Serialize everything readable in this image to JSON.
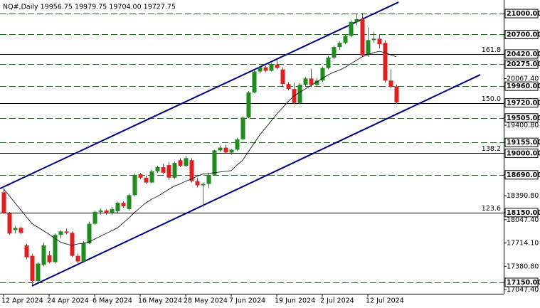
{
  "chart_data": {
    "type": "candlestick",
    "title": "NQ#,Daily  19956.75 19979.75 19704.00 19727.75",
    "categories": [
      "12 Apr 2024",
      null,
      null,
      null,
      null,
      null,
      null,
      null,
      "24 Apr 2024",
      null,
      null,
      null,
      null,
      null,
      null,
      null,
      "6 May 2024",
      null,
      null,
      null,
      null,
      null,
      null,
      null,
      "16 May 2024",
      null,
      null,
      null,
      null,
      null,
      null,
      null,
      "28 May 2024",
      null,
      null,
      null,
      null,
      null,
      null,
      null,
      "7 Jun 2024",
      null,
      null,
      null,
      null,
      null,
      null,
      null,
      "19 Jun 2024",
      null,
      null,
      null,
      null,
      null,
      null,
      null,
      "2 Jul 2024",
      null,
      null,
      null,
      null,
      null,
      null,
      null,
      "12 Jul 2024",
      null,
      null,
      null,
      null,
      null
    ],
    "open": [
      18440,
      18140,
      17900,
      17930,
      17680,
      17530,
      17170,
      17400,
      17540,
      17440,
      17830,
      17880,
      17860,
      17530,
      17450,
      17710,
      17990,
      18160,
      18180,
      18140,
      18170,
      18290,
      18200,
      18400,
      18700,
      18650,
      18580,
      18740,
      18800,
      18830,
      18650,
      18900,
      18820,
      18900,
      18600,
      18540,
      18560,
      18690,
      19040,
      19080,
      19010,
      19050,
      19200,
      19510,
      19870,
      20170,
      20230,
      20180,
      20270,
      20200,
      19990,
      19920,
      19720,
      19980,
      20070,
      19980,
      20040,
      20220,
      20370,
      20520,
      20580,
      20680,
      20880,
      20920,
      20420,
      20620,
      20640,
      20580,
      20040,
      19956.75
    ],
    "high": [
      18500,
      18160,
      17960,
      17950,
      17700,
      17560,
      17440,
      17720,
      17600,
      17850,
      17900,
      17920,
      17880,
      17560,
      17740,
      18020,
      18180,
      18210,
      18200,
      18230,
      18300,
      18310,
      18420,
      18710,
      18720,
      18680,
      18760,
      18820,
      18850,
      18870,
      18880,
      18930,
      18960,
      18930,
      18650,
      18580,
      18720,
      19050,
      19110,
      19120,
      19060,
      19220,
      19530,
      19890,
      20190,
      20240,
      20250,
      20290,
      20330,
      20230,
      20020,
      20010,
      20000,
      20090,
      20210,
      20080,
      20240,
      20390,
      20540,
      20600,
      20700,
      20900,
      20990,
      21010,
      20800,
      20740,
      20700,
      20620,
      20200,
      19979.75
    ],
    "low": [
      18130,
      17830,
      17850,
      17840,
      17480,
      17110,
      17150,
      17380,
      17420,
      17420,
      17780,
      17840,
      17510,
      17420,
      17430,
      17700,
      17970,
      18120,
      18120,
      18120,
      18150,
      18220,
      18180,
      18380,
      18630,
      18560,
      18570,
      18720,
      18700,
      18620,
      18630,
      18800,
      18800,
      18580,
      18510,
      18230,
      18500,
      18680,
      19020,
      19000,
      18980,
      19030,
      19190,
      19500,
      19860,
      20140,
      20160,
      20170,
      20200,
      19960,
      19900,
      19700,
      19700,
      19960,
      19960,
      19960,
      20020,
      20200,
      20350,
      20480,
      20560,
      20660,
      20830,
      20380,
      20380,
      20580,
      20500,
      20010,
      19930,
      19704
    ],
    "close": [
      18140,
      17850,
      17930,
      17860,
      17510,
      17170,
      17420,
      17680,
      17440,
      17830,
      17880,
      17860,
      17530,
      17450,
      17710,
      17990,
      18160,
      18180,
      18140,
      18200,
      18290,
      18240,
      18400,
      18690,
      18650,
      18580,
      18740,
      18800,
      18720,
      18650,
      18860,
      18820,
      18930,
      18600,
      18540,
      18560,
      18690,
      19040,
      19080,
      19010,
      19050,
      19200,
      19510,
      19870,
      20170,
      20230,
      20180,
      20270,
      20220,
      19990,
      19920,
      19720,
      19980,
      20070,
      19980,
      20040,
      20220,
      20370,
      20520,
      20580,
      20680,
      20880,
      20920,
      20400,
      20620,
      20640,
      20560,
      20040,
      19950,
      19727.75
    ],
    "up_color": "#1e8c1e",
    "down_color": "#e02020",
    "moving_average": {
      "color": "#000000",
      "values": [
        18490,
        18390,
        18290,
        18190,
        18090,
        17990,
        17940,
        17890,
        17840,
        17780,
        17730,
        17700,
        17680,
        17700,
        17710,
        17730,
        17770,
        17810,
        17850,
        17890,
        17930,
        18000,
        18070,
        18150,
        18220,
        18290,
        18340,
        18380,
        18430,
        18480,
        18530,
        18560,
        18600,
        18630,
        18670,
        18700,
        18710,
        18720,
        18730,
        18740,
        18750,
        18830,
        18900,
        19020,
        19140,
        19260,
        19360,
        19460,
        19560,
        19650,
        19740,
        19820,
        19870,
        19920,
        19970,
        20020,
        20070,
        20120,
        20160,
        20190,
        20230,
        20280,
        20330,
        20380,
        20410,
        20440,
        20460,
        20440,
        20410,
        20380
      ]
    },
    "trendlines": [
      {
        "color": "#000080",
        "x": [
          -0.625,
          69.4
        ],
        "y": [
          18494,
          21163
        ]
      },
      {
        "color": "#000080",
        "x": [
          5,
          83.75
        ],
        "y": [
          17099,
          20124
        ]
      }
    ],
    "ylim": [
      16987,
      21194
    ],
    "yticks": [
      {
        "value": 21000,
        "label": "21000.00"
      },
      {
        "value": 20700,
        "label": "20700.00"
      },
      {
        "value": 20420,
        "label": "20420.00"
      },
      {
        "value": 20275,
        "label": "20275.00"
      },
      {
        "value": 20067.4,
        "label": "20067.40"
      },
      {
        "value": 19960,
        "label": "19960.00"
      },
      {
        "value": 19720,
        "label": "19720.00"
      },
      {
        "value": 19505,
        "label": "19505.00"
      },
      {
        "value": 19400.8,
        "label": "19400.80"
      },
      {
        "value": 19155,
        "label": "19155.00"
      },
      {
        "value": 19000,
        "label": "19000.00"
      },
      {
        "value": 18690,
        "label": "18690.00"
      },
      {
        "value": 18390.8,
        "label": "18390.80"
      },
      {
        "value": 18150,
        "label": "18150.00"
      },
      {
        "value": 18047.4,
        "label": "18047.40"
      },
      {
        "value": 17714.1,
        "label": "17714.10"
      },
      {
        "value": 17380.8,
        "label": "17380.80"
      },
      {
        "value": 17150,
        "label": "17150.00"
      },
      {
        "value": 17047.4,
        "label": "17047.40"
      }
    ],
    "levels": [
      21000,
      20700,
      20420,
      20275,
      19960,
      19720,
      19505,
      19155,
      19000,
      18690,
      18150,
      17150
    ],
    "level_color": "#1e6e1e",
    "fib_levels": [
      {
        "value": 20420,
        "label": "161.8"
      },
      {
        "value": 19720,
        "label": "150.0"
      },
      {
        "value": 19000,
        "label": "138.2"
      },
      {
        "value": 18150,
        "label": "123.6"
      }
    ]
  }
}
